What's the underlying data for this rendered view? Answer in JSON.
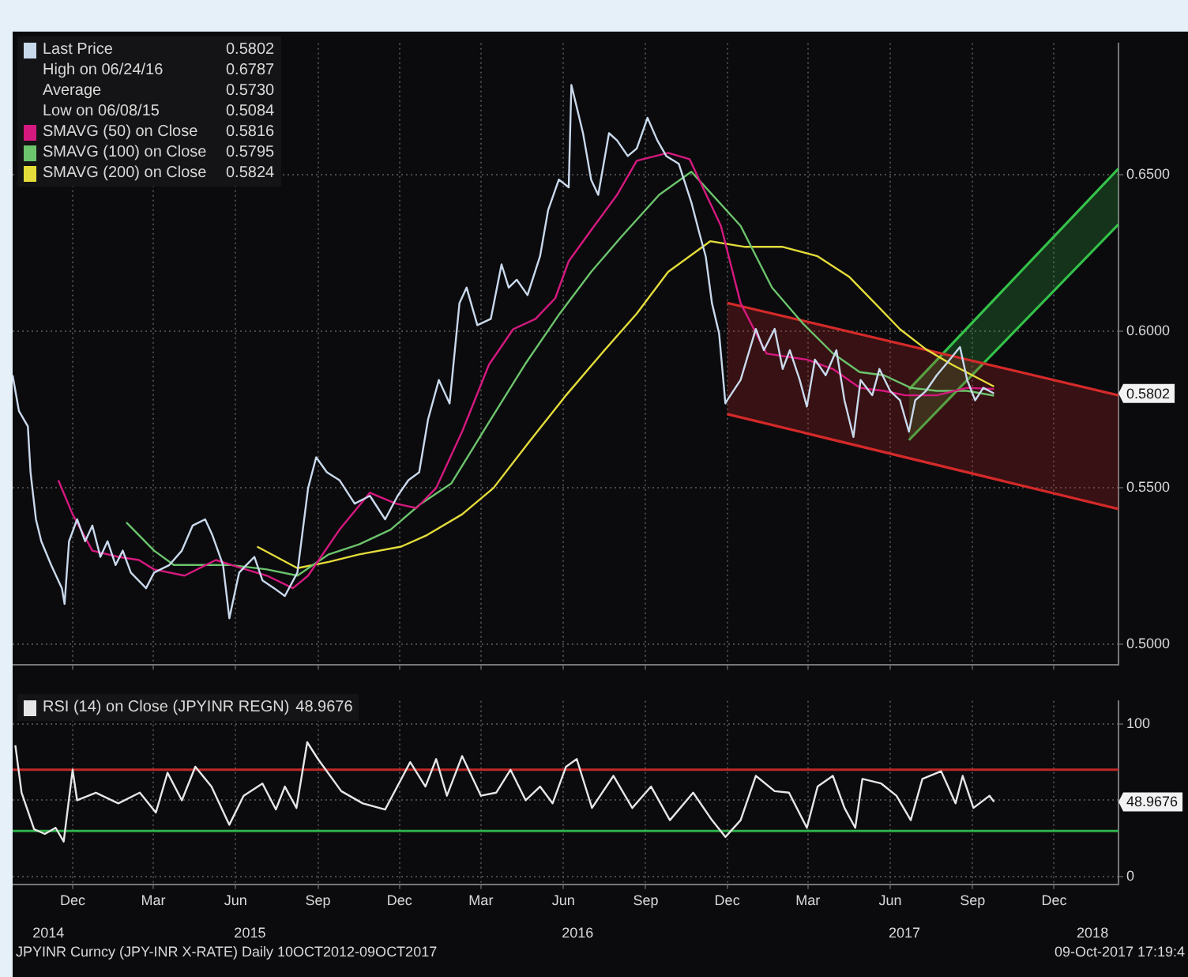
{
  "chart_data": [
    {
      "type": "line",
      "legend": "top left",
      "grid": true,
      "tick_labels": "y",
      "xlim": [
        "2014-10-09",
        "2018-02-25"
      ],
      "xticks": [
        {
          "value": "2014-12-15",
          "label": null
        },
        {
          "value": "2015-03-15",
          "label": null
        },
        {
          "value": "2015-06-15",
          "label": null
        },
        {
          "value": "2015-09-15",
          "label": null
        },
        {
          "value": "2015-12-15",
          "label": null
        },
        {
          "value": "2016-03-15",
          "label": null
        },
        {
          "value": "2016-06-15",
          "label": null
        },
        {
          "value": "2016-09-15",
          "label": null
        },
        {
          "value": "2016-12-15",
          "label": null
        },
        {
          "value": "2017-03-15",
          "label": null
        },
        {
          "value": "2017-06-15",
          "label": null
        },
        {
          "value": "2017-09-15",
          "label": null
        },
        {
          "value": "2017-12-15",
          "label": null
        }
      ],
      "ylim": [
        0.4935,
        0.692
      ],
      "yticks": [
        {
          "value": 0.5,
          "label": "0.5000"
        },
        {
          "value": 0.55,
          "label": "0.5500"
        },
        {
          "value": 0.6,
          "label": "0.6000"
        },
        {
          "value": 0.65,
          "label": "0.6500"
        }
      ],
      "annotations": [
        "0.5802",
        "High on 06/24/16 0.6787",
        "Average 0.5730",
        "Low on 06/08/15 0.5084",
        "0.5816",
        "0.5795",
        "0.5824"
      ],
      "series": [
        {
          "name": "Last Price",
          "color": "#c9d9ec",
          "x": [
            "2014-10-09",
            "2014-10-16",
            "2014-10-26",
            "2014-10-29",
            "2014-11-04",
            "2014-11-10",
            "2014-11-21",
            "2014-12-03",
            "2014-12-06",
            "2014-12-11",
            "2014-12-20",
            "2014-12-29",
            "2015-01-06",
            "2015-01-15",
            "2015-01-23",
            "2015-02-01",
            "2015-02-09",
            "2015-02-18",
            "2015-03-07",
            "2015-03-16",
            "2015-04-02",
            "2015-04-16",
            "2015-04-28",
            "2015-05-12",
            "2015-05-20",
            "2015-06-01",
            "2015-06-08",
            "2015-06-19",
            "2015-06-27",
            "2015-07-06",
            "2015-07-15",
            "2015-07-28",
            "2015-08-09",
            "2015-08-23",
            "2015-09-04",
            "2015-09-13",
            "2015-09-25",
            "2015-10-09",
            "2015-10-26",
            "2015-11-12",
            "2015-11-29",
            "2015-12-13",
            "2015-12-25",
            "2016-01-06",
            "2016-01-16",
            "2016-01-28",
            "2016-02-09",
            "2016-02-20",
            "2016-02-28",
            "2016-03-11",
            "2016-03-26",
            "2016-04-07",
            "2016-04-15",
            "2016-04-24",
            "2016-05-06",
            "2016-05-20",
            "2016-05-29",
            "2016-06-10",
            "2016-06-21",
            "2016-06-24",
            "2016-07-07",
            "2016-07-16",
            "2016-07-24",
            "2016-08-05",
            "2016-08-14",
            "2016-08-26",
            "2016-09-05",
            "2016-09-17",
            "2016-09-28",
            "2016-10-08",
            "2016-10-22",
            "2016-11-05",
            "2016-11-14",
            "2016-11-21",
            "2016-11-28",
            "2016-12-06",
            "2016-12-13",
            "2016-12-15",
            "2016-12-30",
            "2017-01-16",
            "2017-01-25",
            "2017-02-06",
            "2017-02-15",
            "2017-02-23",
            "2017-03-06",
            "2017-03-14",
            "2017-03-23",
            "2017-04-04",
            "2017-04-16",
            "2017-04-25",
            "2017-05-05",
            "2017-05-13",
            "2017-05-26",
            "2017-06-03",
            "2017-06-15",
            "2017-06-26",
            "2017-07-06",
            "2017-07-13",
            "2017-07-25",
            "2017-08-06",
            "2017-08-16",
            "2017-09-01",
            "2017-09-09",
            "2017-09-18",
            "2017-09-27",
            "2017-10-09"
          ],
          "values": [
            0.586,
            0.5746,
            0.5697,
            0.555,
            0.54,
            0.533,
            0.5254,
            0.518,
            0.513,
            0.533,
            0.54,
            0.533,
            0.538,
            0.528,
            0.533,
            0.5254,
            0.53,
            0.523,
            0.518,
            0.523,
            0.5254,
            0.53,
            0.538,
            0.54,
            0.535,
            0.5254,
            0.5084,
            0.523,
            0.5254,
            0.528,
            0.5205,
            0.518,
            0.5155,
            0.523,
            0.55,
            0.5598,
            0.555,
            0.5525,
            0.545,
            0.5475,
            0.54,
            0.5475,
            0.5525,
            0.555,
            0.572,
            0.5845,
            0.577,
            0.609,
            0.614,
            0.602,
            0.604,
            0.6214,
            0.614,
            0.6165,
            0.6116,
            0.624,
            0.6387,
            0.6485,
            0.646,
            0.6787,
            0.6633,
            0.6485,
            0.6436,
            0.6633,
            0.661,
            0.656,
            0.6584,
            0.6682,
            0.661,
            0.656,
            0.6535,
            0.6412,
            0.6313,
            0.624,
            0.609,
            0.5993,
            0.577,
            0.578,
            0.5845,
            0.6008,
            0.594,
            0.6008,
            0.588,
            0.594,
            0.5845,
            0.576,
            0.591,
            0.586,
            0.594,
            0.578,
            0.5663,
            0.5845,
            0.5796,
            0.588,
            0.581,
            0.578,
            0.568,
            0.578,
            0.581,
            0.586,
            0.5894,
            0.595,
            0.5845,
            0.578,
            0.582,
            0.5802
          ]
        },
        {
          "name": "SMAVG (50) on Close",
          "color": "#d6197f",
          "x": [
            "2014-11-29",
            "2014-12-15",
            "2015-01-06",
            "2015-02-04",
            "2015-02-27",
            "2015-03-16",
            "2015-04-19",
            "2015-05-24",
            "2015-06-22",
            "2015-07-20",
            "2015-08-18",
            "2015-09-04",
            "2015-10-09",
            "2015-11-12",
            "2015-12-11",
            "2016-01-03",
            "2016-01-25",
            "2016-02-23",
            "2016-03-24",
            "2016-04-20",
            "2016-05-15",
            "2016-06-06",
            "2016-06-21",
            "2016-07-16",
            "2016-08-14",
            "2016-09-05",
            "2016-10-10",
            "2016-11-03",
            "2016-12-08",
            "2016-12-30",
            "2017-01-28",
            "2017-03-14",
            "2017-04-12",
            "2017-05-12",
            "2017-06-08",
            "2017-07-02",
            "2017-08-06",
            "2017-09-09",
            "2017-10-09"
          ],
          "values": [
            0.5525,
            0.5416,
            0.53,
            0.528,
            0.527,
            0.524,
            0.522,
            0.527,
            0.5244,
            0.522,
            0.518,
            0.522,
            0.5367,
            0.5485,
            0.545,
            0.5436,
            0.55,
            0.568,
            0.5894,
            0.6007,
            0.604,
            0.6106,
            0.6224,
            0.6323,
            0.6436,
            0.6545,
            0.657,
            0.655,
            0.6337,
            0.609,
            0.5929,
            0.591,
            0.588,
            0.582,
            0.581,
            0.5796,
            0.5796,
            0.582,
            0.5816
          ]
        },
        {
          "name": "SMAVG (100) on Close",
          "color": "#6cc46c",
          "x": [
            "2015-02-13",
            "2015-03-16",
            "2015-04-07",
            "2015-05-12",
            "2015-06-10",
            "2015-07-20",
            "2015-08-23",
            "2015-09-27",
            "2015-10-31",
            "2015-12-05",
            "2016-01-08",
            "2016-02-11",
            "2016-03-24",
            "2016-05-03",
            "2016-06-11",
            "2016-07-16",
            "2016-08-19",
            "2016-09-30",
            "2016-11-05",
            "2016-12-30",
            "2017-02-03",
            "2017-03-09",
            "2017-04-12",
            "2017-05-12",
            "2017-06-08",
            "2017-07-08",
            "2017-08-06",
            "2017-09-09",
            "2017-10-09"
          ],
          "values": [
            0.539,
            0.53,
            0.5254,
            0.5254,
            0.5254,
            0.524,
            0.522,
            0.5288,
            0.532,
            0.5367,
            0.545,
            0.5515,
            0.571,
            0.5894,
            0.6057,
            0.619,
            0.6303,
            0.6436,
            0.651,
            0.6337,
            0.614,
            0.6027,
            0.593,
            0.587,
            0.586,
            0.582,
            0.581,
            0.581,
            0.5795
          ]
        },
        {
          "name": "SMAVG (200) on Close",
          "color": "#e4dc3a",
          "x": [
            "2015-07-09",
            "2015-08-23",
            "2015-09-27",
            "2015-10-31",
            "2015-12-17",
            "2016-01-15",
            "2016-02-23",
            "2016-03-29",
            "2016-05-08",
            "2016-06-18",
            "2016-07-28",
            "2016-09-05",
            "2016-10-10",
            "2016-11-26",
            "2017-01-04",
            "2017-02-15",
            "2017-03-26",
            "2017-04-30",
            "2017-05-29",
            "2017-06-26",
            "2017-07-25",
            "2017-08-23",
            "2017-10-09"
          ],
          "values": [
            0.5313,
            0.5244,
            0.5264,
            0.5288,
            0.5313,
            0.535,
            0.5416,
            0.55,
            0.5648,
            0.5796,
            0.593,
            0.6057,
            0.619,
            0.6288,
            0.627,
            0.627,
            0.624,
            0.6175,
            0.609,
            0.6007,
            0.5943,
            0.5894,
            0.5824
          ]
        },
        {
          "type": "line",
          "color": "#d42a2a",
          "x": [
            "2016-12-15",
            "2018-02-25"
          ],
          "values": [
            0.6091,
            0.5796
          ],
          "upper": [
            0.6091,
            0.5796
          ],
          "lower": [
            0.5736,
            0.5433
          ]
        },
        {
          "type": "line",
          "color": "#d42a2a",
          "x": [
            "2016-12-15",
            "2018-02-25"
          ],
          "values": [
            0.5736,
            0.5433
          ]
        },
        {
          "type": "line",
          "color": "#35c24a",
          "x": [
            "2017-07-06",
            "2018-02-25"
          ],
          "values": [
            0.5815,
            0.652
          ],
          "upper": [
            0.5815,
            0.652
          ],
          "lower": [
            0.5653,
            0.6342
          ]
        },
        {
          "type": "line",
          "color": "#35c24a",
          "x": [
            "2017-07-06",
            "2018-02-25"
          ],
          "values": [
            0.5653,
            0.6342
          ]
        }
      ]
    },
    {
      "type": "line",
      "legend": "top left",
      "grid": true,
      "xlim": [
        "2014-10-09",
        "2018-02-25"
      ],
      "xticks": [
        {
          "value": "2014-12-15",
          "label": "Dec"
        },
        {
          "value": "2015-03-15",
          "label": "Mar"
        },
        {
          "value": "2015-06-15",
          "label": "Jun"
        },
        {
          "value": "2015-09-15",
          "label": "Sep"
        },
        {
          "value": "2015-12-15",
          "label": "Dec"
        },
        {
          "value": "2016-03-15",
          "label": "Mar"
        },
        {
          "value": "2016-06-15",
          "label": "Jun"
        },
        {
          "value": "2016-09-15",
          "label": "Sep"
        },
        {
          "value": "2016-12-15",
          "label": "Dec"
        },
        {
          "value": "2017-03-15",
          "label": "Mar"
        },
        {
          "value": "2017-06-15",
          "label": "Jun"
        },
        {
          "value": "2017-09-15",
          "label": "Sep"
        },
        {
          "value": "2017-12-15",
          "label": "Dec"
        }
      ],
      "x2lim": [
        "2014-10-09",
        "2018-02-25"
      ],
      "x2ticks": [
        {
          "value": "2014-11-18",
          "label": "2014"
        },
        {
          "value": "2015-07-01",
          "label": "2015"
        },
        {
          "value": "2016-07-01",
          "label": "2016"
        },
        {
          "value": "2017-07-01",
          "label": "2017"
        },
        {
          "value": "2018-01-27",
          "label": "2018"
        }
      ],
      "ylim": [
        -5,
        115
      ],
      "yticks": [
        0,
        {
          "value": 50,
          "label": null
        },
        100
      ],
      "ref_lines": [
        {
          "axis": "y",
          "value": 70,
          "color": "#c02828"
        },
        {
          "axis": "y",
          "value": 30,
          "color": "#2fb04a"
        }
      ],
      "annotations": [
        "48.9676",
        "JPYINR Curncy (JPY-INR X-RATE)  Daily 10OCT2012-09OCT2017",
        "09-Oct-2017 17:19:4"
      ],
      "series": [
        {
          "name": "RSI (14) on Close (JPYINR REGN)",
          "color": "#e6e6e6",
          "x": [
            "2014-10-12",
            "2014-10-19",
            "2014-11-02",
            "2014-11-14",
            "2014-11-26",
            "2014-12-05",
            "2014-12-15",
            "2014-12-20",
            "2015-01-10",
            "2015-02-04",
            "2015-02-28",
            "2015-03-18",
            "2015-03-31",
            "2015-04-16",
            "2015-05-01",
            "2015-05-19",
            "2015-06-08",
            "2015-06-24",
            "2015-07-15",
            "2015-07-30",
            "2015-08-09",
            "2015-08-22",
            "2015-09-03",
            "2015-09-15",
            "2015-10-11",
            "2015-11-04",
            "2015-11-29",
            "2015-12-27",
            "2016-01-13",
            "2016-01-25",
            "2016-02-06",
            "2016-02-23",
            "2016-03-15",
            "2016-04-01",
            "2016-04-17",
            "2016-05-04",
            "2016-05-20",
            "2016-06-03",
            "2016-06-18",
            "2016-06-30",
            "2016-07-17",
            "2016-08-10",
            "2016-08-31",
            "2016-09-21",
            "2016-10-12",
            "2016-11-07",
            "2016-11-28",
            "2016-12-13",
            "2016-12-30",
            "2017-01-16",
            "2017-02-06",
            "2017-02-22",
            "2017-03-14",
            "2017-03-26",
            "2017-04-12",
            "2017-04-25",
            "2017-05-07",
            "2017-05-15",
            "2017-06-05",
            "2017-06-22",
            "2017-07-08",
            "2017-07-21",
            "2017-08-11",
            "2017-08-27",
            "2017-09-04",
            "2017-09-16",
            "2017-10-04",
            "2017-10-09"
          ],
          "values": [
            86,
            55,
            31,
            28,
            32,
            23,
            70,
            50,
            55,
            48,
            55,
            42,
            68,
            50,
            72,
            59,
            34,
            53,
            61,
            44,
            59,
            45,
            88,
            77,
            56,
            48,
            44,
            75,
            59,
            77,
            53,
            79,
            53,
            55,
            70,
            50,
            59,
            48,
            72,
            77,
            45,
            66,
            45,
            59,
            37,
            55,
            37,
            26,
            37,
            66,
            56,
            55,
            32,
            59,
            66,
            45,
            32,
            64,
            61,
            53,
            37,
            64,
            69,
            48,
            66,
            45,
            53,
            49
          ]
        }
      ]
    }
  ]
}
